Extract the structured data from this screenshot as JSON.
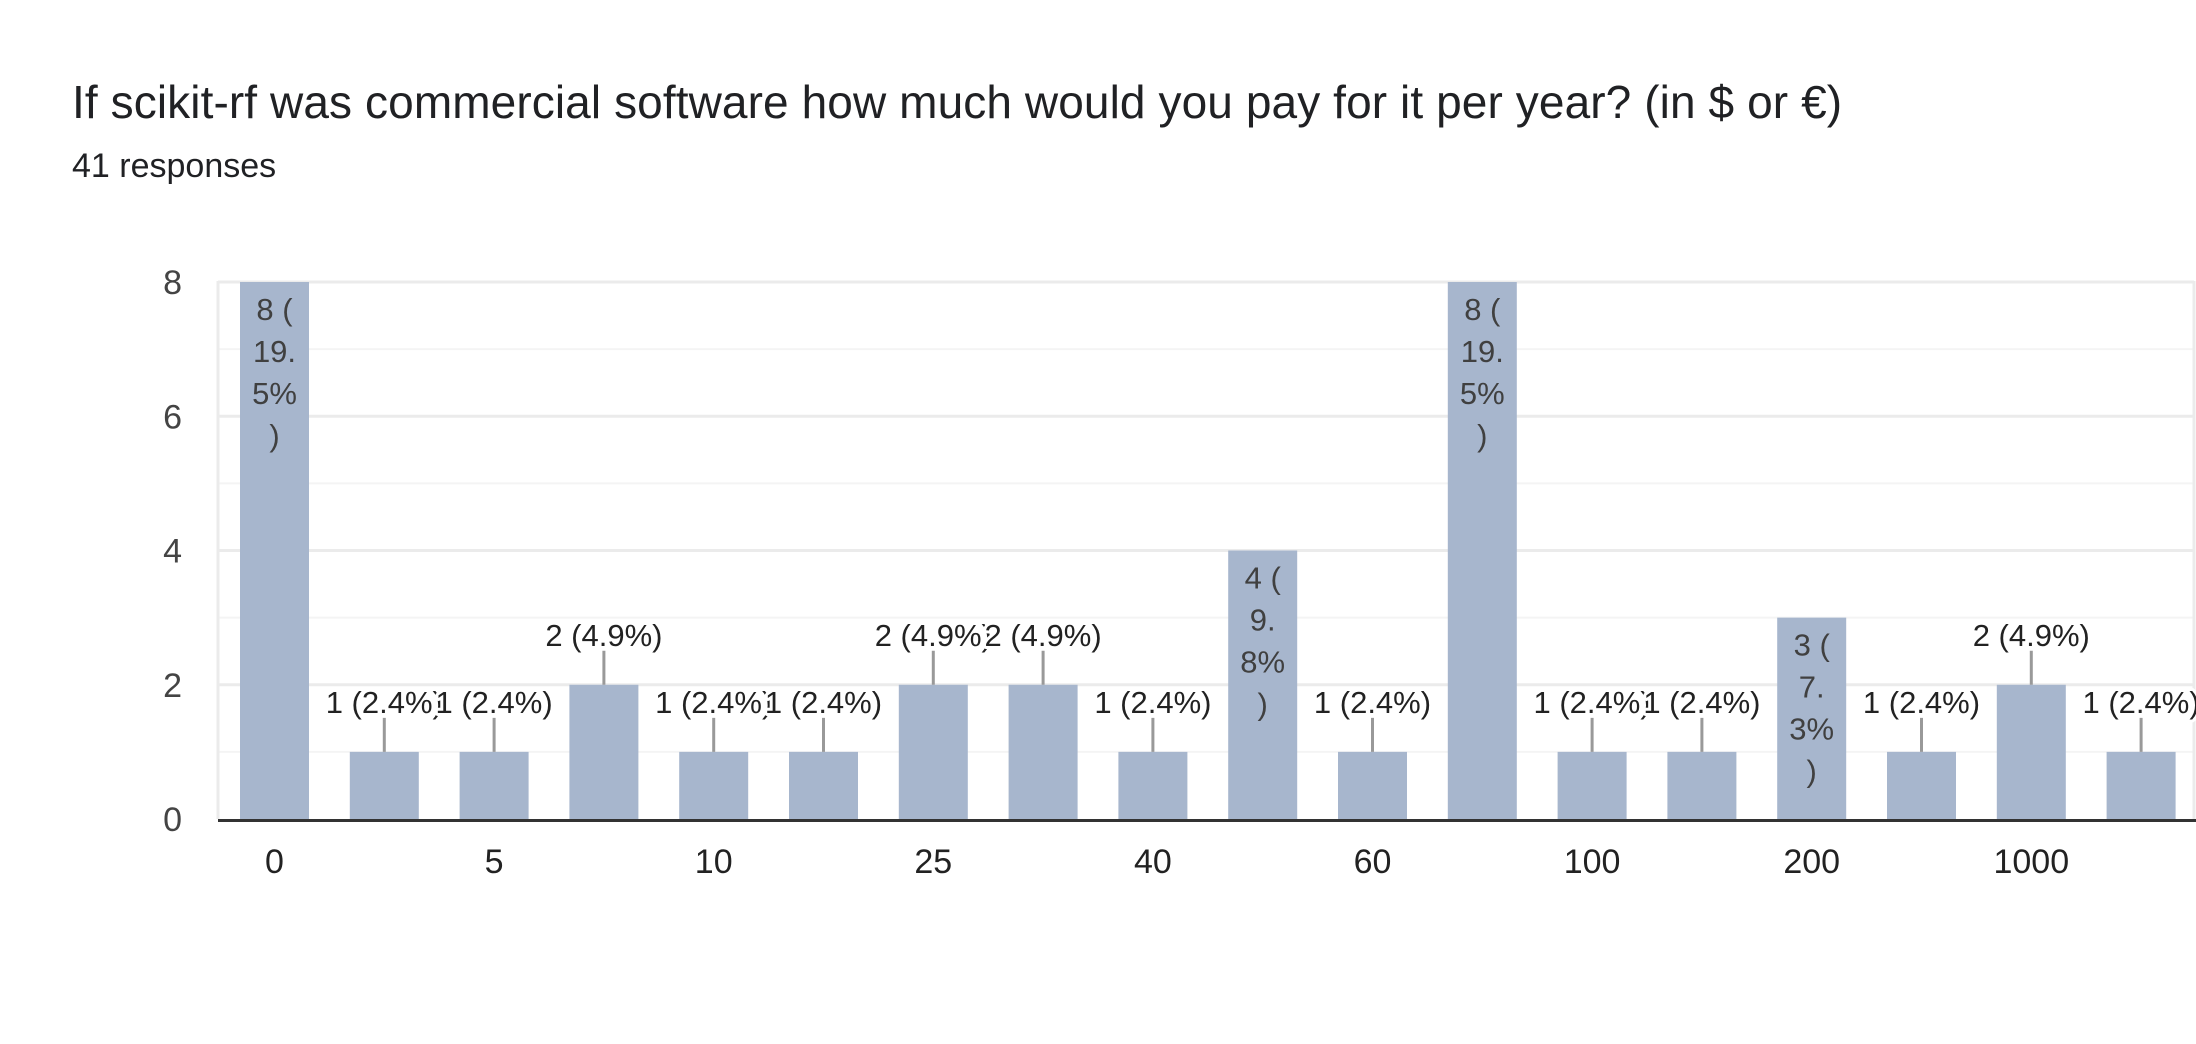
{
  "header": {
    "title": "If scikit-rf was commercial software how much would you pay for it per year? (in $ or €)",
    "responses": "41 responses"
  },
  "colors": {
    "bar": "#a7b6cd",
    "grid_major": "#ebebeb",
    "grid_minor": "#f4f4f4",
    "axis": "#333333",
    "leader": "#999999"
  },
  "chart_data": {
    "type": "bar",
    "title": "If scikit-rf was commercial software how much would you pay for it per year? (in $ or €)",
    "subtitle": "41 responses",
    "xlabel": "",
    "ylabel": "",
    "ylim": [
      0,
      8
    ],
    "yticks": [
      "0",
      "2",
      "4",
      "6",
      "8"
    ],
    "grid": true,
    "bars": [
      {
        "label": "0",
        "value": 8,
        "text": [
          "8 (",
          "19.",
          "5%",
          ")"
        ]
      },
      {
        "label": "",
        "value": 1,
        "text": [
          "1 (2.4%)"
        ]
      },
      {
        "label": "5",
        "value": 1,
        "text": [
          "1 (2.4%)"
        ]
      },
      {
        "label": "",
        "value": 2,
        "text": [
          "2 (4.9%)"
        ]
      },
      {
        "label": "10",
        "value": 1,
        "text": [
          "1 (2.4%)"
        ]
      },
      {
        "label": "",
        "value": 1,
        "text": [
          "1 (2.4%)"
        ]
      },
      {
        "label": "25",
        "value": 2,
        "text": [
          "2 (4.9%)"
        ]
      },
      {
        "label": "",
        "value": 2,
        "text": [
          "2 (4.9%)"
        ]
      },
      {
        "label": "40",
        "value": 1,
        "text": [
          "1 (2.4%)"
        ]
      },
      {
        "label": "",
        "value": 4,
        "text": [
          "4 (",
          "9.",
          "8%",
          ")"
        ]
      },
      {
        "label": "60",
        "value": 1,
        "text": [
          "1 (2.4%)"
        ]
      },
      {
        "label": "",
        "value": 8,
        "text": [
          "8 (",
          "19.",
          "5%",
          ")"
        ]
      },
      {
        "label": "100",
        "value": 1,
        "text": [
          "1 (2.4%)"
        ]
      },
      {
        "label": "",
        "value": 1,
        "text": [
          "1 (2.4%)"
        ]
      },
      {
        "label": "200",
        "value": 3,
        "text": [
          "3 (",
          "7.",
          "3%",
          ")"
        ]
      },
      {
        "label": "",
        "value": 1,
        "text": [
          "1 (2.4%)"
        ]
      },
      {
        "label": "1000",
        "value": 2,
        "text": [
          "2 (4.9%)"
        ]
      },
      {
        "label": "",
        "value": 1,
        "text": [
          "1 (2.4%)"
        ]
      }
    ]
  }
}
